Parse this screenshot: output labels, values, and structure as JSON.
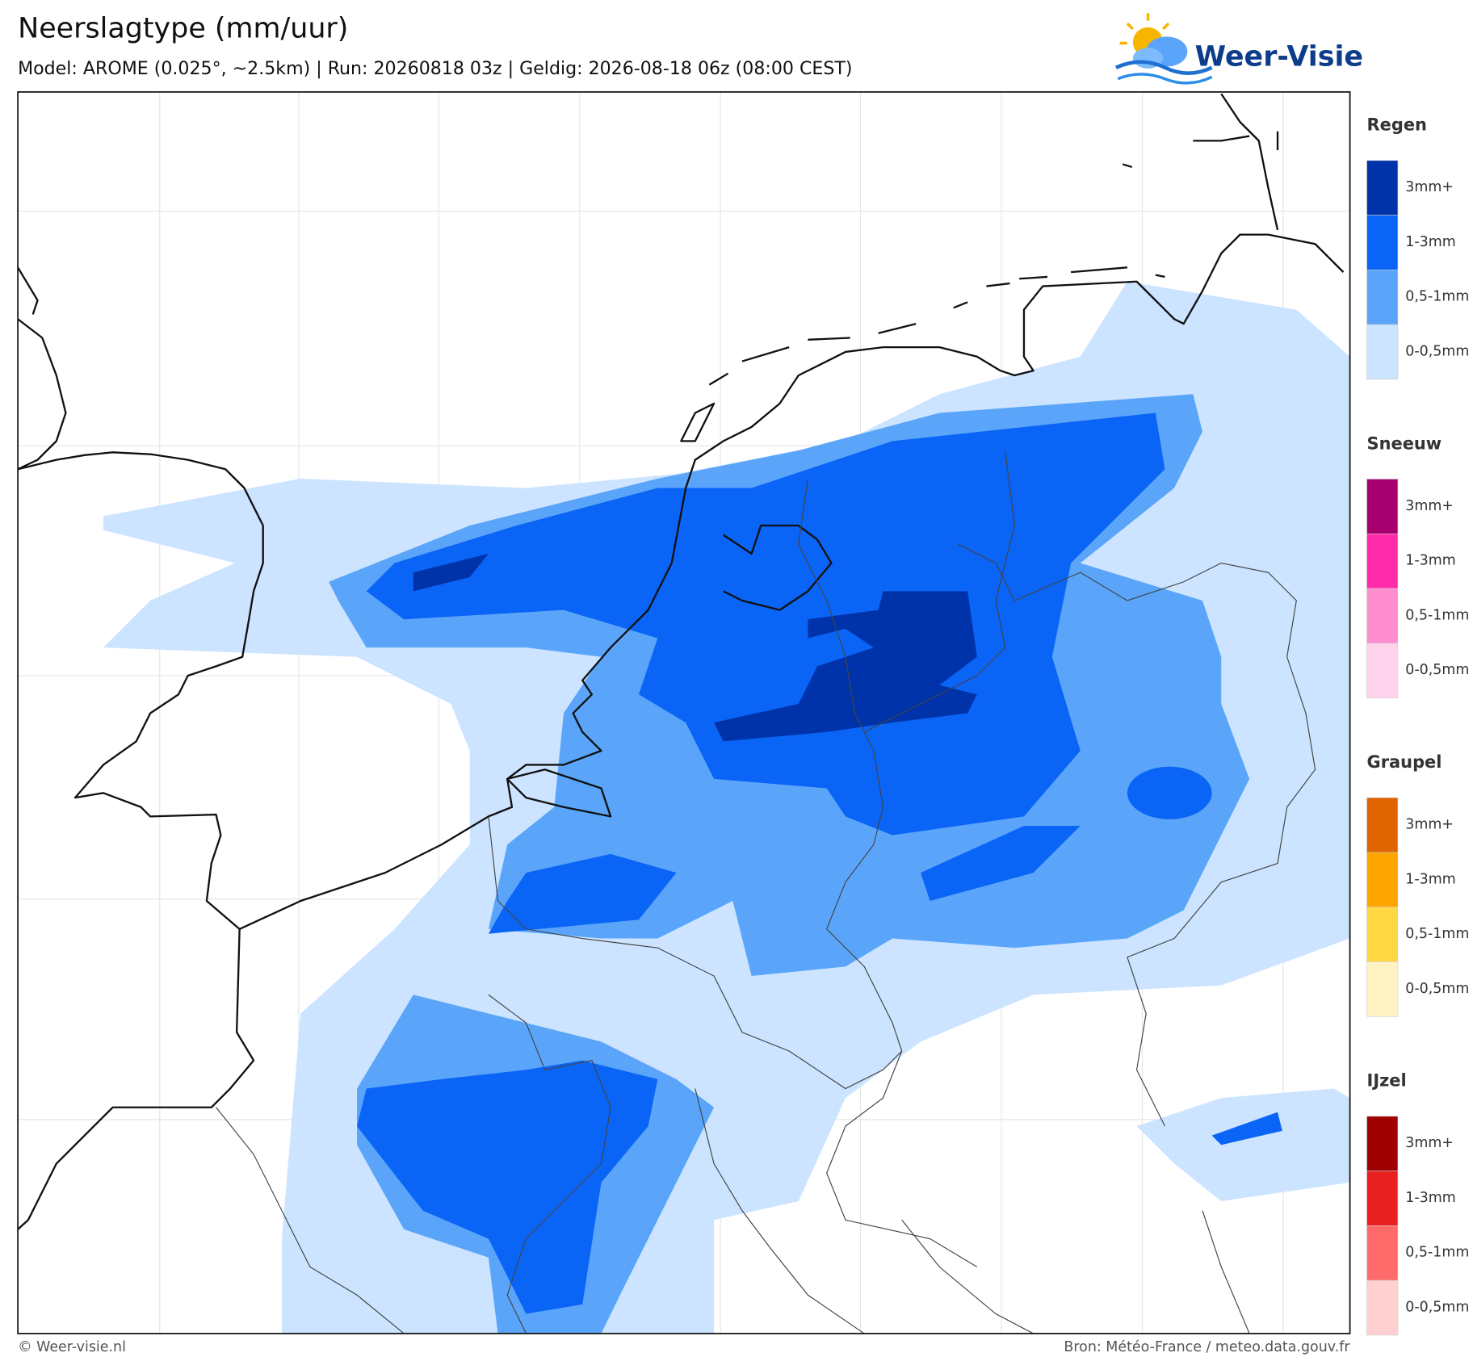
{
  "header": {
    "title": "Neerslagtype (mm/uur)",
    "subtitle": "Model: AROME (0.025°, ~2.5km)  |  Run: 20260818 03z  |  Geldig: 2026-08-18 06z (08:00 CEST)",
    "logo": "Weer-Visie"
  },
  "legend": [
    {
      "title": "Regen",
      "items": [
        {
          "label": "3mm+",
          "color": "#0033aa"
        },
        {
          "label": "1-3mm",
          "color": "#0a64f5"
        },
        {
          "label": "0,5-1mm",
          "color": "#5aa5fa"
        },
        {
          "label": "0-0,5mm",
          "color": "#cce4ff"
        }
      ]
    },
    {
      "title": "Sneeuw",
      "items": [
        {
          "label": "3mm+",
          "color": "#a5006e"
        },
        {
          "label": "1-3mm",
          "color": "#ff2aa7"
        },
        {
          "label": "0,5-1mm",
          "color": "#ff8ecf"
        },
        {
          "label": "0-0,5mm",
          "color": "#ffd3ec"
        }
      ]
    },
    {
      "title": "Graupel",
      "items": [
        {
          "label": "3mm+",
          "color": "#e06400"
        },
        {
          "label": "1-3mm",
          "color": "#ffa500"
        },
        {
          "label": "0,5-1mm",
          "color": "#ffd740"
        },
        {
          "label": "0-0,5mm",
          "color": "#fff3c4"
        }
      ]
    },
    {
      "title": "IJzel",
      "items": [
        {
          "label": "3mm+",
          "color": "#a00000"
        },
        {
          "label": "1-3mm",
          "color": "#e82020"
        },
        {
          "label": "0,5-1mm",
          "color": "#ff6b6b"
        },
        {
          "label": "0-0,5mm",
          "color": "#ffd0d0"
        }
      ]
    }
  ],
  "footer": {
    "credit": "© Weer-visie.nl",
    "source": "Bron: Météo-France / meteo.data.gouv.fr"
  }
}
